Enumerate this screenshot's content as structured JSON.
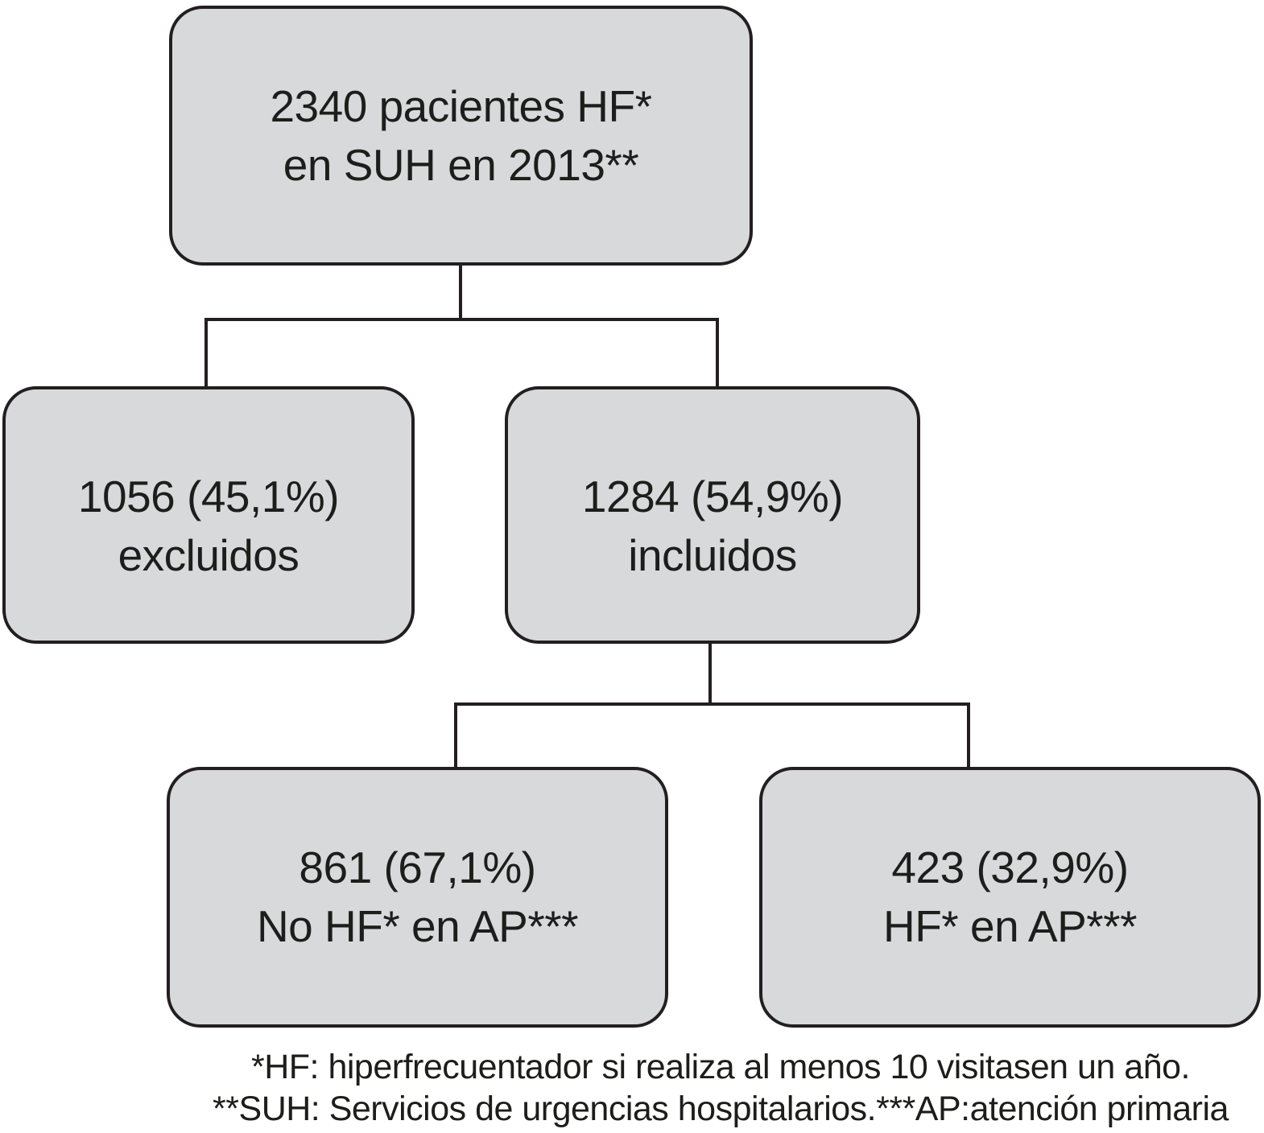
{
  "flowchart": {
    "type": "patient-flow-diagram",
    "nodes": {
      "root": {
        "line1": "2340 pacientes HF*",
        "line2": "en SUH en 2013**"
      },
      "excluded": {
        "line1": "1056 (45,1%)",
        "line2": "excluidos"
      },
      "included": {
        "line1": "1284 (54,9%)",
        "line2": "incluidos"
      },
      "no_hf_ap": {
        "line1": "861 (67,1%)",
        "line2": "No HF* en AP***"
      },
      "hf_ap": {
        "line1": "423 (32,9%)",
        "line2": "HF* en AP***"
      }
    },
    "footnotes": {
      "line1": "*HF: hiperfrecuentador si realiza al menos 10 visitasen un año.",
      "line2": "**SUH: Servicios de urgencias hospitalarios.***AP:atención primaria"
    },
    "colors": {
      "box_fill": "#d8d9da",
      "box_border": "#231f20",
      "connector": "#231f20",
      "text": "#1d1d1b",
      "background": "#ffffff"
    }
  }
}
